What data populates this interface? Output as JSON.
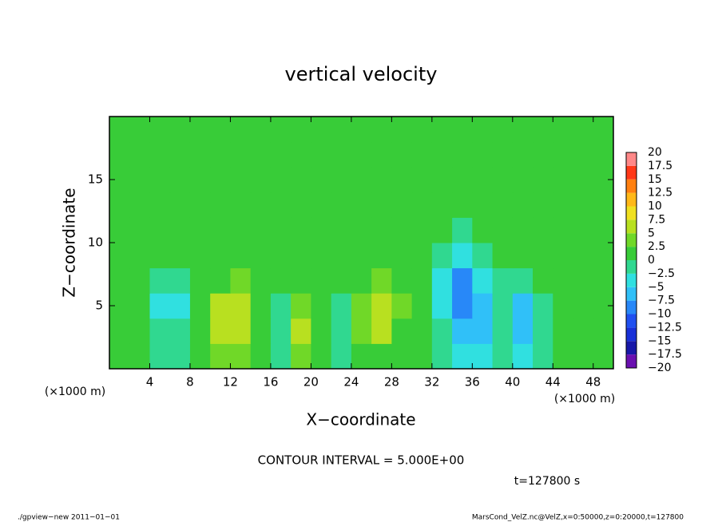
{
  "chart_data": {
    "type": "heatmap",
    "title": "vertical velocity",
    "x_label": "X−coordinate",
    "y_label": "Z−coordinate",
    "x_unit": "(×1000 m)",
    "y_unit": "(×1000 m)",
    "xlim": [
      0,
      50
    ],
    "ylim": [
      0,
      20
    ],
    "xticks": [
      4,
      8,
      12,
      16,
      20,
      24,
      28,
      32,
      36,
      40,
      44,
      48
    ],
    "yticks": [
      5,
      10,
      15
    ],
    "x": [
      1,
      3,
      5,
      7,
      9,
      11,
      13,
      15,
      17,
      19,
      21,
      23,
      25,
      27,
      29,
      31,
      33,
      35,
      37,
      39,
      41,
      43,
      45,
      47,
      49
    ],
    "y": [
      1,
      3,
      5,
      7,
      9,
      11,
      13,
      15,
      17,
      19
    ],
    "z": [
      [
        1,
        0,
        -1,
        -1,
        1,
        4,
        3,
        0,
        -1,
        3,
        0,
        -1,
        2,
        1,
        1,
        0,
        -1,
        -3,
        -3,
        -1,
        -4,
        -1,
        1,
        1,
        0
      ],
      [
        1,
        0,
        -2,
        -2,
        2,
        7,
        6,
        1,
        -2,
        5,
        0,
        -2,
        4,
        5,
        2,
        0,
        -2,
        -6,
        -6,
        -2,
        -6,
        -2,
        1,
        2,
        1
      ],
      [
        1,
        1,
        -3,
        -3,
        2,
        5,
        7,
        2,
        -1,
        3,
        1,
        -1,
        3,
        6,
        3,
        0,
        -3,
        -8,
        -7,
        -2,
        -6,
        -2,
        1,
        1,
        1
      ],
      [
        0,
        1,
        -1,
        -1,
        1,
        2,
        3,
        1,
        0,
        1,
        1,
        0,
        1,
        3,
        2,
        0,
        -3,
        -9,
        -5,
        -1,
        -2,
        0,
        1,
        0,
        0
      ],
      [
        0,
        0,
        0,
        0,
        1,
        1,
        1,
        1,
        0,
        0,
        1,
        0,
        0,
        1,
        1,
        0,
        -1,
        -3,
        -2,
        0,
        0,
        0,
        0,
        0,
        0
      ],
      [
        0,
        1,
        0,
        0,
        1,
        1,
        1,
        1,
        1,
        0,
        0,
        0,
        0,
        0,
        1,
        0,
        0,
        -1,
        0,
        0,
        0,
        0,
        0,
        0,
        0
      ],
      [
        1,
        1,
        0,
        1,
        1,
        0,
        1,
        1,
        1,
        1,
        0,
        0,
        0,
        0,
        0,
        1,
        1,
        0,
        0,
        0,
        1,
        0,
        0,
        1,
        1
      ],
      [
        1,
        1,
        1,
        1,
        1,
        1,
        1,
        1,
        0,
        1,
        1,
        0,
        0,
        0,
        1,
        1,
        1,
        1,
        1,
        1,
        1,
        1,
        1,
        1,
        1
      ],
      [
        1,
        1,
        1,
        1,
        1,
        1,
        1,
        1,
        1,
        1,
        1,
        1,
        1,
        1,
        1,
        1,
        1,
        1,
        1,
        1,
        1,
        1,
        1,
        1,
        1
      ],
      [
        1,
        1,
        1,
        1,
        1,
        1,
        1,
        1,
        1,
        1,
        1,
        1,
        1,
        1,
        1,
        1,
        1,
        1,
        1,
        1,
        1,
        1,
        1,
        1,
        1
      ]
    ],
    "levels": [
      {
        "value": -20,
        "label": "−20"
      },
      {
        "value": -17.5,
        "label": "−17.5"
      },
      {
        "value": -15,
        "label": "−15"
      },
      {
        "value": -12.5,
        "label": "−12.5"
      },
      {
        "value": -10,
        "label": "−10"
      },
      {
        "value": -7.5,
        "label": "−7.5"
      },
      {
        "value": -5,
        "label": "−5"
      },
      {
        "value": -2.5,
        "label": "−2.5"
      },
      0,
      2.5,
      5,
      7.5,
      10,
      12.5,
      15,
      17.5,
      20
    ],
    "colors": [
      "#6a10b0",
      "#1818a8",
      "#1830d8",
      "#2050f0",
      "#2888f8",
      "#30c0f8",
      "#30e0e0",
      "#30d890",
      "#38cc38",
      "#70d828",
      "#b8e020",
      "#f0e020",
      "#ffb818",
      "#ff8010",
      "#ff3818",
      "#ff8888"
    ],
    "contour_interval": "CONTOUR INTERVAL = 5.000E+00",
    "time": "t=127800 s",
    "footer_left": "./gpview−new   2011−01−01",
    "footer_right": "MarsCond_VelZ.nc@VelZ,x=0:50000,z=0:20000,t=127800"
  }
}
